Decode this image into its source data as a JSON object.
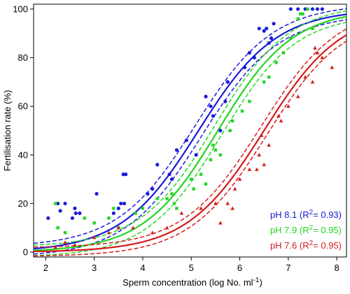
{
  "chart_data": {
    "type": "scatter",
    "xlabel_main": "Sperm concentration (log No. ml",
    "xlabel_sup": "-1",
    "xlabel_close": ")",
    "ylabel": "Fertilisation rate (%)",
    "xlim": [
      1.75,
      8.2
    ],
    "ylim": [
      -2,
      102
    ],
    "xticks": [
      2,
      3,
      4,
      5,
      6,
      7,
      8
    ],
    "yticks": [
      0,
      20,
      40,
      60,
      80,
      100
    ],
    "grid": false,
    "legend_position": "bottom-right",
    "series": [
      {
        "name": "pH 8.1",
        "legend_prefix": "pH 8.1 (R",
        "legend_sup": "2",
        "legend_suffix": "= 0.93)",
        "color": "#1a1adb",
        "marker": "circle",
        "fit": {
          "midpoint": 5.15,
          "slope": 1.25,
          "band": 3.5
        },
        "points": [
          [
            2.05,
            14
          ],
          [
            2.25,
            20
          ],
          [
            2.3,
            17
          ],
          [
            2.4,
            20
          ],
          [
            2.55,
            14
          ],
          [
            2.6,
            18
          ],
          [
            2.62,
            16
          ],
          [
            2.7,
            16
          ],
          [
            3.05,
            24
          ],
          [
            3.4,
            16
          ],
          [
            3.5,
            18
          ],
          [
            3.55,
            20
          ],
          [
            3.6,
            32
          ],
          [
            3.65,
            32
          ],
          [
            3.62,
            20
          ],
          [
            4.1,
            24
          ],
          [
            4.2,
            26
          ],
          [
            4.3,
            36
          ],
          [
            4.55,
            32
          ],
          [
            4.6,
            30
          ],
          [
            4.7,
            42
          ],
          [
            4.9,
            46
          ],
          [
            5.1,
            40
          ],
          [
            5.3,
            64
          ],
          [
            5.4,
            60
          ],
          [
            5.45,
            56
          ],
          [
            5.6,
            50
          ],
          [
            5.7,
            62
          ],
          [
            5.75,
            70
          ],
          [
            6.1,
            76
          ],
          [
            6.2,
            82
          ],
          [
            6.3,
            80
          ],
          [
            6.4,
            92
          ],
          [
            6.5,
            91
          ],
          [
            6.55,
            92
          ],
          [
            6.6,
            86
          ],
          [
            6.65,
            88
          ],
          [
            6.7,
            94
          ],
          [
            7.05,
            100
          ],
          [
            7.2,
            100
          ],
          [
            7.35,
            100
          ],
          [
            7.5,
            100
          ],
          [
            7.6,
            100
          ],
          [
            7.7,
            100
          ]
        ]
      },
      {
        "name": "pH 7.9",
        "legend_prefix": "pH 7.9 (R",
        "legend_sup": "2",
        "legend_suffix": "= 0.95)",
        "color": "#22d622",
        "marker": "square",
        "fit": {
          "midpoint": 5.55,
          "slope": 1.3,
          "band": 3.5
        },
        "points": [
          [
            2.2,
            20
          ],
          [
            2.25,
            10
          ],
          [
            2.4,
            8
          ],
          [
            2.8,
            14
          ],
          [
            3.0,
            12
          ],
          [
            3.3,
            14
          ],
          [
            3.4,
            18
          ],
          [
            3.5,
            10
          ],
          [
            3.85,
            16
          ],
          [
            4.0,
            18
          ],
          [
            4.3,
            22
          ],
          [
            4.5,
            22
          ],
          [
            4.6,
            24
          ],
          [
            4.65,
            20
          ],
          [
            4.7,
            18
          ],
          [
            5.0,
            30
          ],
          [
            5.05,
            26
          ],
          [
            5.2,
            32
          ],
          [
            5.3,
            28
          ],
          [
            5.4,
            38
          ],
          [
            5.45,
            44
          ],
          [
            5.5,
            42
          ],
          [
            5.6,
            40
          ],
          [
            5.8,
            50
          ],
          [
            5.85,
            54
          ],
          [
            6.05,
            58
          ],
          [
            6.2,
            62
          ],
          [
            6.5,
            70
          ],
          [
            6.6,
            72
          ],
          [
            6.75,
            78
          ],
          [
            6.9,
            82
          ],
          [
            7.05,
            88
          ],
          [
            7.2,
            96
          ],
          [
            7.25,
            98
          ],
          [
            7.3,
            98
          ],
          [
            7.4,
            100
          ],
          [
            7.5,
            92
          ]
        ]
      },
      {
        "name": "pH 7.6",
        "legend_prefix": "pH 7.6 (R",
        "legend_sup": "2",
        "legend_suffix": "= 0.95)",
        "color": "#d61a1a",
        "marker": "triangle",
        "fit": {
          "midpoint": 6.5,
          "slope": 1.25,
          "band": 3.0
        },
        "points": [
          [
            2.2,
            2
          ],
          [
            2.4,
            4
          ],
          [
            2.6,
            3
          ],
          [
            3.0,
            6
          ],
          [
            3.3,
            8
          ],
          [
            3.5,
            10
          ],
          [
            3.8,
            10
          ],
          [
            4.2,
            8
          ],
          [
            4.5,
            10
          ],
          [
            4.8,
            16
          ],
          [
            5.2,
            18
          ],
          [
            5.5,
            20
          ],
          [
            5.6,
            12
          ],
          [
            5.75,
            20
          ],
          [
            5.85,
            18
          ],
          [
            5.9,
            26
          ],
          [
            6.0,
            30
          ],
          [
            6.2,
            34
          ],
          [
            6.35,
            34
          ],
          [
            6.4,
            40
          ],
          [
            6.45,
            48
          ],
          [
            6.5,
            36
          ],
          [
            6.6,
            44
          ],
          [
            6.8,
            56
          ],
          [
            6.85,
            54
          ],
          [
            7.0,
            60
          ],
          [
            7.2,
            64
          ],
          [
            7.35,
            72
          ],
          [
            7.5,
            70
          ],
          [
            7.55,
            84
          ],
          [
            7.6,
            82
          ],
          [
            7.7,
            80
          ],
          [
            7.9,
            76
          ]
        ]
      }
    ]
  }
}
